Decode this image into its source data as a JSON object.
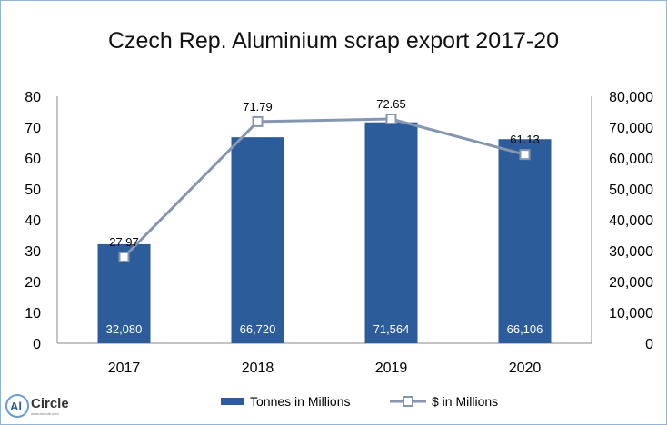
{
  "chart_data": {
    "type": "bar",
    "title": "Czech Rep. Aluminium scrap export 2017-20",
    "categories": [
      "2017",
      "2018",
      "2019",
      "2020"
    ],
    "y_left": {
      "min": 0,
      "max": 80,
      "step": 10,
      "ticks": [
        "0",
        "10",
        "20",
        "30",
        "40",
        "50",
        "60",
        "70",
        "80"
      ]
    },
    "y_right": {
      "min": 0,
      "max": 80000,
      "step": 10000,
      "ticks": [
        "0",
        "10,000",
        "20,000",
        "30,000",
        "40,000",
        "50,000",
        "60,000",
        "70,000",
        "80,000"
      ]
    },
    "series": [
      {
        "name": "Tonnes in Millions",
        "type": "bar",
        "axis": "right",
        "color": "#2c5d9a",
        "values": [
          32080,
          66720,
          71564,
          66106
        ],
        "labels": [
          "32,080",
          "66,720",
          "71,564",
          "66,106"
        ]
      },
      {
        "name": "$ in Millions",
        "type": "line",
        "axis": "left",
        "color": "#8496b0",
        "marker": "square",
        "values": [
          27.97,
          71.79,
          72.65,
          61.13
        ],
        "labels": [
          "27.97",
          "71.79",
          "72.65",
          "61.13"
        ]
      }
    ],
    "grid": false,
    "legend": "bottom"
  },
  "logo": {
    "text": "AlCircle",
    "tagline": "www.alcircle.com"
  }
}
